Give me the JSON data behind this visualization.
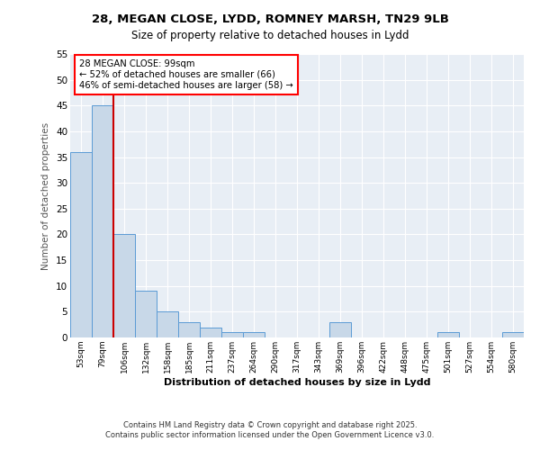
{
  "title_line1": "28, MEGAN CLOSE, LYDD, ROMNEY MARSH, TN29 9LB",
  "title_line2": "Size of property relative to detached houses in Lydd",
  "xlabel": "Distribution of detached houses by size in Lydd",
  "ylabel": "Number of detached properties",
  "categories": [
    "53sqm",
    "79sqm",
    "106sqm",
    "132sqm",
    "158sqm",
    "185sqm",
    "211sqm",
    "237sqm",
    "264sqm",
    "290sqm",
    "317sqm",
    "343sqm",
    "369sqm",
    "396sqm",
    "422sqm",
    "448sqm",
    "475sqm",
    "501sqm",
    "527sqm",
    "554sqm",
    "580sqm"
  ],
  "values": [
    36,
    45,
    20,
    9,
    5,
    3,
    2,
    1,
    1,
    0,
    0,
    0,
    3,
    0,
    0,
    0,
    0,
    1,
    0,
    0,
    1
  ],
  "bar_color": "#c8d8e8",
  "bar_edge_color": "#5b9bd5",
  "vline_position": 1.5,
  "annotation_text": "28 MEGAN CLOSE: 99sqm\n← 52% of detached houses are smaller (66)\n46% of semi-detached houses are larger (58) →",
  "vline_color": "#cc0000",
  "ylim": [
    0,
    55
  ],
  "yticks": [
    0,
    5,
    10,
    15,
    20,
    25,
    30,
    35,
    40,
    45,
    50,
    55
  ],
  "footer_line1": "Contains HM Land Registry data © Crown copyright and database right 2025.",
  "footer_line2": "Contains public sector information licensed under the Open Government Licence v3.0.",
  "bg_color": "#e8eef5",
  "grid_color": "#ffffff"
}
